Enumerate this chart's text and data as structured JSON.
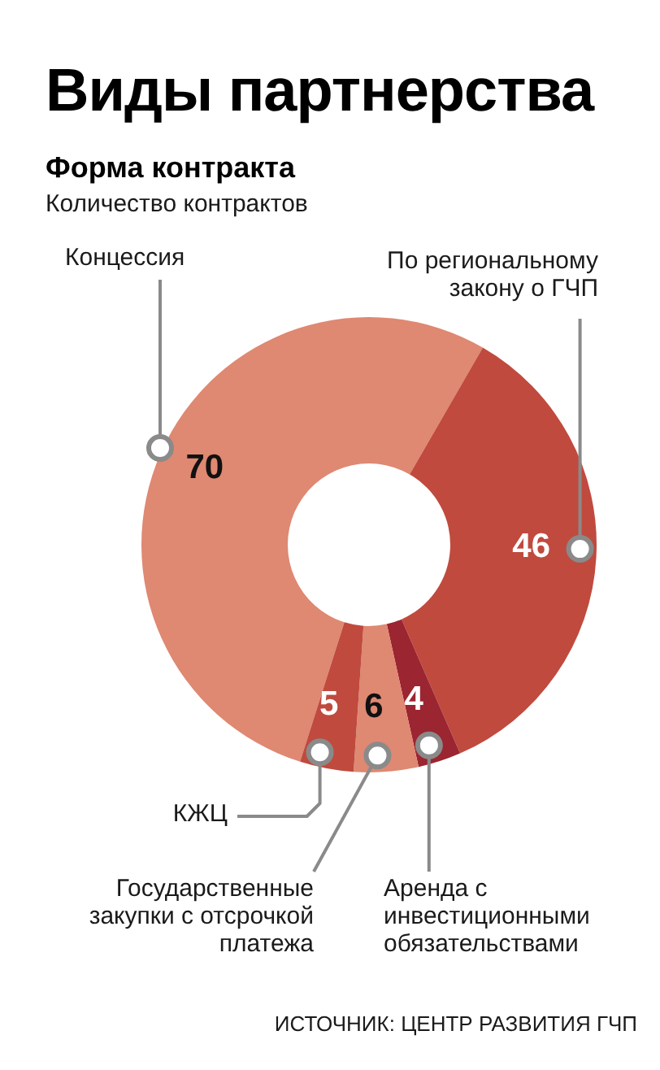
{
  "chart_data": {
    "type": "donut",
    "title": "Виды партнерства",
    "subtitle": "Форма контракта",
    "categories": [
      "Концессия",
      "По региональному закону о ГЧП",
      "Аренда с инвестиционными обязательствами",
      "Государственные закупки с отсрочкой платежа",
      "КЖЦ"
    ],
    "values": [
      70,
      46,
      4,
      6,
      5
    ],
    "colors": [
      "#df8872",
      "#c04a3e",
      "#9b2530",
      "#df8872",
      "#c04a3e"
    ],
    "data_labels": true,
    "annotations": [
      "Количество контрактов",
      "ИСТОЧНИК: ЦЕНТР РАЗВИТИЯ ГЧП"
    ]
  }
}
